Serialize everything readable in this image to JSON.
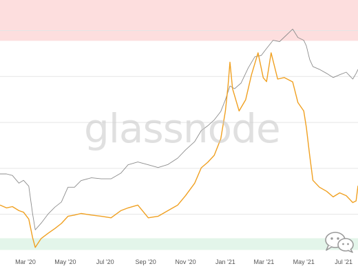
{
  "watermark_text": "glassnode",
  "colors": {
    "primary_line": "#f0a020",
    "reference_line": "#8c8c8c",
    "upper_zone": "#fddede",
    "lower_zone": "#e3f5ea",
    "gridline": "#e5e5e5",
    "tick_text": "#555555"
  },
  "icons": {
    "corner_badge": "wechat-icon"
  },
  "chart_data": {
    "type": "line",
    "title": "",
    "xlabel": "",
    "ylabel": "",
    "x_ticks": [
      "Mar '20",
      "May '20",
      "Jul '20",
      "Sep '20",
      "Nov '20",
      "Jan '21",
      "Mar '21",
      "May '21",
      "Jul '21"
    ],
    "x_tick_dates": [
      "2020-03-01",
      "2020-05-01",
      "2020-07-01",
      "2020-09-01",
      "2020-11-01",
      "2021-01-01",
      "2021-03-01",
      "2021-05-01",
      "2021-07-01"
    ],
    "xlim": [
      "2020-01-22",
      "2021-07-23"
    ],
    "y_ticks_labeled": false,
    "ylim": [
      0,
      1
    ],
    "grid": {
      "x": false,
      "y": true
    },
    "bands": [
      {
        "y0": 0.84,
        "y1": 1.0,
        "color": "#fddede"
      },
      {
        "y0": 0.02,
        "y1": 0.066,
        "color": "#e3f5ea"
      }
    ],
    "series": [
      {
        "color": "#8c8c8c",
        "points": [
          [
            "2020-01-22",
            0.318
          ],
          [
            "2020-02-01",
            0.318
          ],
          [
            "2020-02-10",
            0.312
          ],
          [
            "2020-02-20",
            0.282
          ],
          [
            "2020-02-27",
            0.293
          ],
          [
            "2020-03-06",
            0.27
          ],
          [
            "2020-03-12",
            0.161
          ],
          [
            "2020-03-16",
            0.099
          ],
          [
            "2020-03-25",
            0.125
          ],
          [
            "2020-04-05",
            0.162
          ],
          [
            "2020-04-15",
            0.188
          ],
          [
            "2020-04-25",
            0.208
          ],
          [
            "2020-05-05",
            0.266
          ],
          [
            "2020-05-15",
            0.266
          ],
          [
            "2020-05-25",
            0.292
          ],
          [
            "2020-06-10",
            0.303
          ],
          [
            "2020-06-25",
            0.299
          ],
          [
            "2020-07-10",
            0.299
          ],
          [
            "2020-07-25",
            0.321
          ],
          [
            "2020-08-05",
            0.354
          ],
          [
            "2020-08-20",
            0.365
          ],
          [
            "2020-09-05",
            0.354
          ],
          [
            "2020-09-20",
            0.343
          ],
          [
            "2020-10-05",
            0.355
          ],
          [
            "2020-10-20",
            0.38
          ],
          [
            "2020-11-01",
            0.412
          ],
          [
            "2020-11-15",
            0.445
          ],
          [
            "2020-11-25",
            0.488
          ],
          [
            "2020-12-05",
            0.507
          ],
          [
            "2020-12-15",
            0.53
          ],
          [
            "2020-12-25",
            0.563
          ],
          [
            "2021-01-01",
            0.609
          ],
          [
            "2021-01-08",
            0.663
          ],
          [
            "2021-01-15",
            0.652
          ],
          [
            "2021-01-25",
            0.674
          ],
          [
            "2021-02-05",
            0.734
          ],
          [
            "2021-02-15",
            0.777
          ],
          [
            "2021-02-25",
            0.783
          ],
          [
            "2021-03-05",
            0.81
          ],
          [
            "2021-03-15",
            0.842
          ],
          [
            "2021-03-25",
            0.837
          ],
          [
            "2021-04-05",
            0.864
          ],
          [
            "2021-04-14",
            0.886
          ],
          [
            "2021-04-22",
            0.853
          ],
          [
            "2021-05-01",
            0.842
          ],
          [
            "2021-05-05",
            0.82
          ],
          [
            "2021-05-10",
            0.767
          ],
          [
            "2021-05-15",
            0.739
          ],
          [
            "2021-05-25",
            0.728
          ],
          [
            "2021-06-05",
            0.712
          ],
          [
            "2021-06-15",
            0.696
          ],
          [
            "2021-06-25",
            0.707
          ],
          [
            "2021-07-05",
            0.717
          ],
          [
            "2021-07-15",
            0.69
          ],
          [
            "2021-07-20",
            0.712
          ],
          [
            "2021-07-23",
            0.728
          ]
        ]
      },
      {
        "color": "#f0a020",
        "points": [
          [
            "2020-01-22",
            0.196
          ],
          [
            "2020-02-01",
            0.185
          ],
          [
            "2020-02-10",
            0.19
          ],
          [
            "2020-02-20",
            0.174
          ],
          [
            "2020-02-27",
            0.168
          ],
          [
            "2020-03-06",
            0.141
          ],
          [
            "2020-03-12",
            0.068
          ],
          [
            "2020-03-16",
            0.03
          ],
          [
            "2020-03-25",
            0.065
          ],
          [
            "2020-04-05",
            0.086
          ],
          [
            "2020-04-15",
            0.104
          ],
          [
            "2020-04-25",
            0.124
          ],
          [
            "2020-05-05",
            0.152
          ],
          [
            "2020-05-15",
            0.157
          ],
          [
            "2020-05-25",
            0.163
          ],
          [
            "2020-06-10",
            0.157
          ],
          [
            "2020-06-25",
            0.152
          ],
          [
            "2020-07-10",
            0.146
          ],
          [
            "2020-07-25",
            0.174
          ],
          [
            "2020-08-05",
            0.185
          ],
          [
            "2020-08-20",
            0.196
          ],
          [
            "2020-09-05",
            0.146
          ],
          [
            "2020-09-20",
            0.152
          ],
          [
            "2020-10-05",
            0.174
          ],
          [
            "2020-10-20",
            0.196
          ],
          [
            "2020-11-01",
            0.233
          ],
          [
            "2020-11-15",
            0.282
          ],
          [
            "2020-11-25",
            0.342
          ],
          [
            "2020-12-05",
            0.364
          ],
          [
            "2020-12-15",
            0.391
          ],
          [
            "2020-12-25",
            0.456
          ],
          [
            "2021-01-01",
            0.565
          ],
          [
            "2021-01-05",
            0.663
          ],
          [
            "2021-01-08",
            0.756
          ],
          [
            "2021-01-12",
            0.652
          ],
          [
            "2021-01-22",
            0.565
          ],
          [
            "2021-02-01",
            0.609
          ],
          [
            "2021-02-10",
            0.707
          ],
          [
            "2021-02-20",
            0.793
          ],
          [
            "2021-02-28",
            0.695
          ],
          [
            "2021-03-05",
            0.68
          ],
          [
            "2021-03-12",
            0.793
          ],
          [
            "2021-03-22",
            0.69
          ],
          [
            "2021-04-01",
            0.696
          ],
          [
            "2021-04-14",
            0.679
          ],
          [
            "2021-04-22",
            0.598
          ],
          [
            "2021-05-01",
            0.565
          ],
          [
            "2021-05-05",
            0.5
          ],
          [
            "2021-05-10",
            0.391
          ],
          [
            "2021-05-15",
            0.293
          ],
          [
            "2021-05-25",
            0.266
          ],
          [
            "2021-06-05",
            0.25
          ],
          [
            "2021-06-15",
            0.228
          ],
          [
            "2021-06-25",
            0.244
          ],
          [
            "2021-07-05",
            0.233
          ],
          [
            "2021-07-15",
            0.206
          ],
          [
            "2021-07-20",
            0.212
          ],
          [
            "2021-07-23",
            0.272
          ]
        ]
      }
    ]
  }
}
